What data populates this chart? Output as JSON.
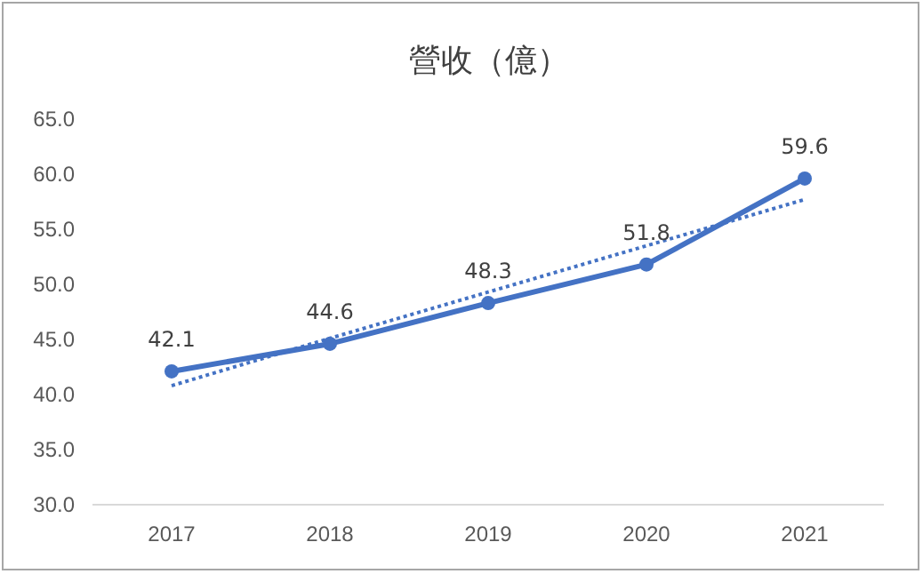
{
  "chart_data": {
    "type": "line",
    "title": "營收（億）",
    "categories": [
      "2017",
      "2018",
      "2019",
      "2020",
      "2021"
    ],
    "series": [
      {
        "color": "#4472c4",
        "values": [
          42.1,
          44.6,
          48.3,
          51.8,
          59.6
        ],
        "value_labels": [
          "42.1",
          "44.6",
          "48.3",
          "51.8",
          "59.6"
        ],
        "marker": "circle",
        "line_style": "solid"
      },
      {
        "type": "line",
        "color": "#4472c4",
        "values": [
          40.8,
          45.1,
          49.3,
          53.5,
          57.7
        ],
        "marker": "none",
        "line_style": "dotted"
      }
    ],
    "ylim": [
      30,
      65
    ],
    "yticks": [
      {
        "value": 30,
        "label": "30.0"
      },
      {
        "value": 35,
        "label": "35.0"
      },
      {
        "value": 40,
        "label": "40.0"
      },
      {
        "value": 45,
        "label": "45.0"
      },
      {
        "value": 50,
        "label": "50.0"
      },
      {
        "value": 55,
        "label": "55.0"
      },
      {
        "value": 60,
        "label": "60.0"
      },
      {
        "value": 65,
        "label": "65.0"
      }
    ],
    "grid": false
  }
}
